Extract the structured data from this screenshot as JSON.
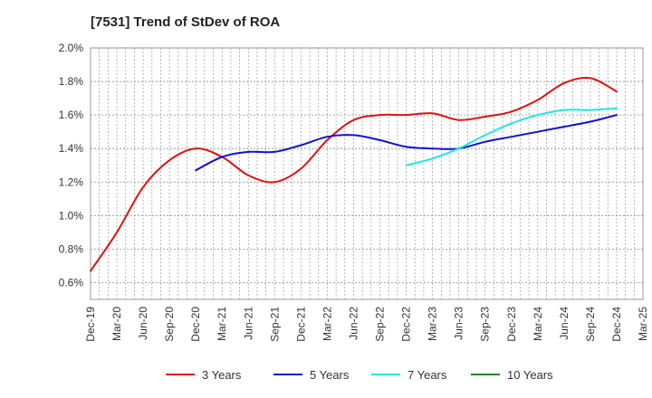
{
  "chart_data": {
    "type": "line",
    "title": "[7531]  Trend of StDev of ROA",
    "xlabel": "",
    "ylabel": "",
    "x_ticks": [
      "Dec-19",
      "Mar-20",
      "Jun-20",
      "Sep-20",
      "Dec-20",
      "Mar-21",
      "Jun-21",
      "Sep-21",
      "Dec-21",
      "Mar-22",
      "Jun-22",
      "Sep-22",
      "Dec-22",
      "Mar-23",
      "Jun-23",
      "Sep-23",
      "Dec-23",
      "Mar-24",
      "Jun-24",
      "Sep-24",
      "Dec-24",
      "Mar-25"
    ],
    "y_ticks": [
      "0.6%",
      "0.8%",
      "1.0%",
      "1.2%",
      "1.4%",
      "1.6%",
      "1.8%",
      "2.0%"
    ],
    "ylim": [
      0.5,
      2.0
    ],
    "grid": true,
    "legend_position": "bottom",
    "series": [
      {
        "name": "3 Years",
        "color": "#dd1111",
        "x": [
          "Dec-19",
          "Mar-20",
          "Jun-20",
          "Sep-20",
          "Dec-20",
          "Mar-21",
          "Jun-21",
          "Sep-21",
          "Dec-21",
          "Mar-22",
          "Jun-22",
          "Sep-22",
          "Dec-22",
          "Mar-23",
          "Jun-23",
          "Sep-23",
          "Dec-23",
          "Mar-24",
          "Jun-24",
          "Sep-24",
          "Dec-24"
        ],
        "values": [
          0.67,
          0.9,
          1.17,
          1.33,
          1.4,
          1.35,
          1.24,
          1.2,
          1.28,
          1.45,
          1.57,
          1.6,
          1.6,
          1.61,
          1.57,
          1.59,
          1.62,
          1.69,
          1.79,
          1.82,
          1.74
        ]
      },
      {
        "name": "5 Years",
        "color": "#1111cc",
        "x": [
          "Dec-20",
          "Mar-21",
          "Jun-21",
          "Sep-21",
          "Dec-21",
          "Mar-22",
          "Jun-22",
          "Sep-22",
          "Dec-22",
          "Mar-23",
          "Jun-23",
          "Sep-23",
          "Dec-23",
          "Mar-24",
          "Jun-24",
          "Sep-24",
          "Dec-24"
        ],
        "values": [
          1.27,
          1.35,
          1.38,
          1.38,
          1.42,
          1.47,
          1.48,
          1.45,
          1.41,
          1.4,
          1.4,
          1.44,
          1.47,
          1.5,
          1.53,
          1.56,
          1.6
        ]
      },
      {
        "name": "7 Years",
        "color": "#22e5e5",
        "x": [
          "Dec-22",
          "Mar-23",
          "Jun-23",
          "Sep-23",
          "Dec-23",
          "Mar-24",
          "Jun-24",
          "Sep-24",
          "Dec-24"
        ],
        "values": [
          1.3,
          1.34,
          1.4,
          1.48,
          1.55,
          1.6,
          1.63,
          1.63,
          1.64
        ]
      },
      {
        "name": "10 Years",
        "color": "#228822",
        "x": [],
        "values": []
      }
    ]
  }
}
